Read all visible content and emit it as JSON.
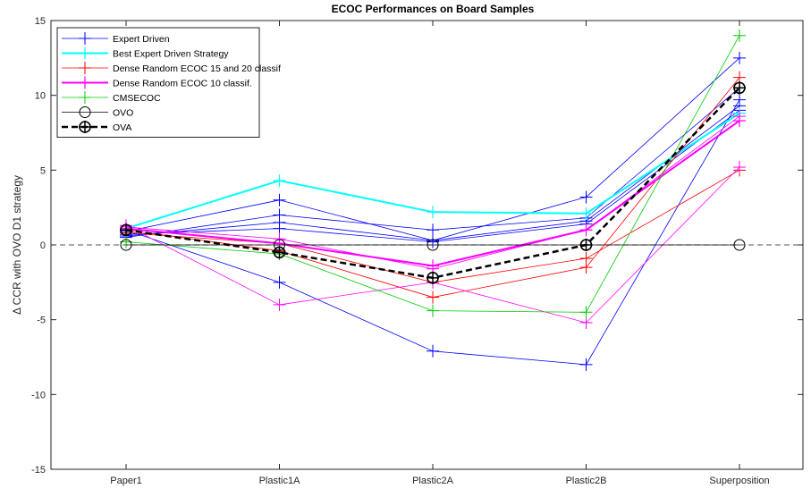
{
  "chart_data": {
    "type": "line",
    "title": "ECOC Performances on Board Samples",
    "xlabel": "",
    "ylabel": "Δ CCR with OVO D1 strategy",
    "categories": [
      "Paper1",
      "Plastic1A",
      "Plastic2A",
      "Plastic2B",
      "Superposition"
    ],
    "ylim": [
      -15,
      15
    ],
    "yticks": [
      -15,
      -10,
      -5,
      0,
      5,
      10,
      15
    ],
    "grid": false,
    "legend_position": "top-left",
    "reference_line": {
      "y": 0,
      "style": "dashed",
      "color": "#555555"
    },
    "series": [
      {
        "name": "Expert Driven",
        "color": "#0000ff",
        "marker": "+",
        "width": 0.8,
        "values": [
          0.9,
          3.0,
          0.3,
          3.2,
          12.5
        ]
      },
      {
        "name": "",
        "color": "#0000ff",
        "marker": "+",
        "width": 0.8,
        "values": [
          0.5,
          2.0,
          1.0,
          1.8,
          10.5
        ]
      },
      {
        "name": "",
        "color": "#0000ff",
        "marker": "+",
        "width": 0.8,
        "values": [
          0.6,
          1.5,
          0.3,
          1.6,
          9.3
        ]
      },
      {
        "name": "",
        "color": "#0000ff",
        "marker": "+",
        "width": 0.8,
        "values": [
          0.7,
          1.1,
          0.2,
          1.4,
          9.0
        ]
      },
      {
        "name": "",
        "color": "#0000ff",
        "marker": "+",
        "width": 0.8,
        "values": [
          1.0,
          -2.5,
          -7.1,
          -8.0,
          9.7
        ]
      },
      {
        "name": "Best Expert Driven Strategy",
        "color": "#00ffff",
        "marker": "+",
        "width": 2,
        "values": [
          1.1,
          4.3,
          2.2,
          2.1,
          8.8
        ]
      },
      {
        "name": "Dense Random ECOC 15 and 20 classif",
        "color": "#ff0000",
        "marker": "+",
        "width": 0.8,
        "values": [
          1.0,
          -0.4,
          -3.5,
          -1.5,
          11.2
        ]
      },
      {
        "name": "",
        "color": "#ff0000",
        "marker": "+",
        "width": 0.8,
        "values": [
          0.8,
          0.1,
          -2.5,
          -0.9,
          5.0
        ]
      },
      {
        "name": "Dense Random ECOC 10 classif.",
        "color": "#ff00ff",
        "marker": "+",
        "width": 2,
        "values": [
          1.1,
          0.1,
          -1.4,
          1.0,
          8.3
        ]
      },
      {
        "name": "",
        "color": "#ff00ff",
        "marker": "+",
        "width": 0.8,
        "values": [
          1.3,
          -4.0,
          -2.5,
          -5.2,
          5.2
        ]
      },
      {
        "name": "",
        "color": "#ff00ff",
        "marker": "+",
        "width": 0.8,
        "values": [
          1.2,
          0.4,
          -1.6,
          1.0,
          8.6
        ]
      },
      {
        "name": "CMSECOC",
        "color": "#00cc00",
        "marker": "+",
        "width": 0.8,
        "values": [
          0.2,
          -0.6,
          -4.4,
          -4.5,
          14.0
        ]
      },
      {
        "name": "OVO",
        "color": "#000000",
        "marker": "o",
        "width": 0.8,
        "values": [
          0,
          0,
          0,
          0,
          0
        ]
      },
      {
        "name": "OVA",
        "color": "#000000",
        "marker": "o+",
        "width": 2.5,
        "dashed": true,
        "values": [
          1.0,
          -0.5,
          -2.2,
          0.0,
          10.5
        ]
      }
    ]
  }
}
